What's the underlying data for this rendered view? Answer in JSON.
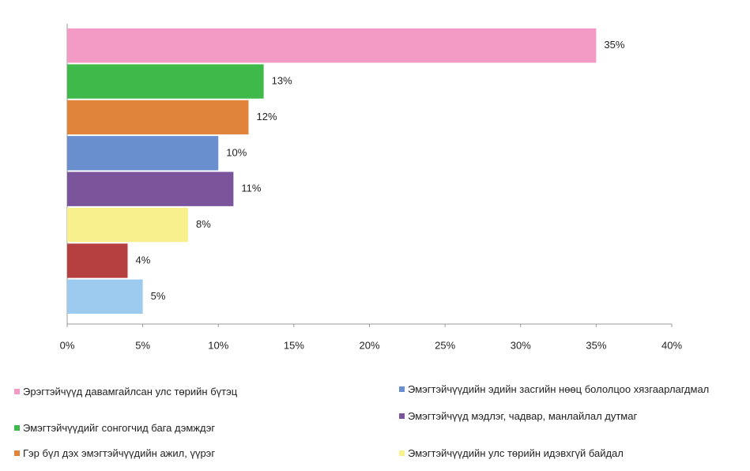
{
  "chart_data": {
    "type": "bar",
    "orientation": "horizontal",
    "series": [
      {
        "name": "Эрэгтэйчүүд давамгайлсан улс төрийн бүтэц",
        "color": "#f39ac5",
        "values": [
          35
        ],
        "value_labels": [
          "35%"
        ]
      },
      {
        "name": "Эмэгтэйчүүдийг сонгогчид бага дэмждэг",
        "color": "#3fba4a",
        "values": [
          13
        ],
        "value_labels": [
          "13%"
        ]
      },
      {
        "name": "Гэр бүл дэх эмэгтэйчүүдийн ажил, үүрэг",
        "color": "#e0843b",
        "values": [
          12
        ],
        "value_labels": [
          "12%"
        ]
      },
      {
        "name": "Эмэгтэйчүүдийн эдийн засгийн нөөц бололцоо хязгаарлагдмал",
        "color": "#6a8fcf",
        "values": [
          10
        ],
        "value_labels": [
          "10%"
        ]
      },
      {
        "name": "Эмэгтэйчүүд мэдлэг, чадвар, манлайлал дутмаг",
        "color": "#7a559c",
        "values": [
          11
        ],
        "value_labels": [
          "11%"
        ]
      },
      {
        "name": "Эмэгтэйчүүдийн улс төрийн идэвхгүй байдал",
        "color": "#f7f08c",
        "values": [
          8
        ],
        "value_labels": [
          "8%"
        ]
      },
      {
        "color": "#b5403f",
        "values": [
          4
        ],
        "value_labels": [
          "4%"
        ]
      },
      {
        "color": "#9ccbef",
        "values": [
          5
        ],
        "value_labels": [
          "5%"
        ]
      }
    ],
    "xlim": [
      0,
      40
    ],
    "xticks": [
      {
        "value": 0,
        "label": "0%"
      },
      {
        "value": 5,
        "label": "5%"
      },
      {
        "value": 10,
        "label": "10%"
      },
      {
        "value": 15,
        "label": "15%"
      },
      {
        "value": 20,
        "label": "20%"
      },
      {
        "value": 25,
        "label": "25%"
      },
      {
        "value": 30,
        "label": "30%"
      },
      {
        "value": 35,
        "label": "35%"
      },
      {
        "value": 40,
        "label": "40%"
      }
    ],
    "grid": false
  }
}
